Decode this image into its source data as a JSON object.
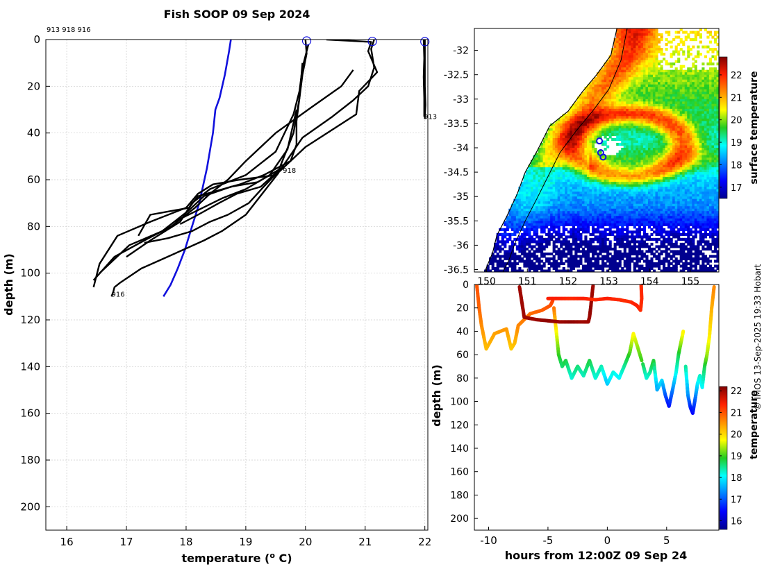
{
  "colors": {
    "profile_line": "#000000",
    "climatology_line": "#1010dd",
    "surface_marker": "#1010dd",
    "grid": "#cccccc",
    "coast": "#000000"
  },
  "credit": "© IMOS 13-Sep-2025 19:33 Hobart",
  "chart_data": [
    {
      "id": "profiles",
      "type": "line",
      "title": "Fish SOOP 09 Sep 2024",
      "subtitle": "913 918 916",
      "xlabel": "temperature (o C)",
      "xlabel_base": "temperature (",
      "xlabel_sup": "o",
      "xlabel_tail": " C)",
      "ylabel": "depth (m)",
      "xlim": [
        15.65,
        22.05
      ],
      "ylim": [
        0,
        210
      ],
      "y_reversed": true,
      "grid": true,
      "xticks": [
        16,
        17,
        18,
        19,
        20,
        21,
        22
      ],
      "yticks": [
        0,
        20,
        40,
        60,
        80,
        100,
        120,
        140,
        160,
        180,
        200
      ],
      "annotations": [
        {
          "text": "913",
          "x": 21.98,
          "y": 34
        },
        {
          "text": "918",
          "x": 19.62,
          "y": 57
        },
        {
          "text": "916",
          "x": 16.75,
          "y": 110
        }
      ],
      "surface_markers": [
        {
          "x": 20.02,
          "y": 0.6
        },
        {
          "x": 21.12,
          "y": 0.8
        },
        {
          "x": 22.0,
          "y": 0.9
        }
      ],
      "series": [
        {
          "name": "climatology",
          "kind": "climatology",
          "x": [
            18.75,
            18.72,
            18.65,
            18.56,
            18.49,
            18.45,
            18.35,
            18.22,
            18.1,
            17.98,
            17.86,
            17.74,
            17.62
          ],
          "y": [
            0,
            5,
            15,
            25,
            30,
            40,
            55,
            70,
            80,
            90,
            98,
            105,
            110
          ]
        },
        {
          "name": "913 a",
          "kind": "profile",
          "x": [
            22.0,
            22.0,
            22.0,
            22.01,
            22.0,
            22.0
          ],
          "y": [
            0,
            10,
            20,
            28,
            33,
            34
          ]
        },
        {
          "name": "913 b",
          "kind": "profile",
          "x": [
            21.98,
            21.99,
            21.98,
            21.99,
            21.99
          ],
          "y": [
            0,
            8,
            16,
            25,
            33
          ]
        },
        {
          "name": "918 a",
          "kind": "profile",
          "x": [
            20.35,
            21.1,
            21.05,
            21.2,
            20.9,
            20.85,
            20.0,
            19.5,
            18.9,
            18.45,
            18.2,
            18.0,
            17.4,
            16.85,
            16.55,
            16.45
          ],
          "y": [
            0,
            1,
            5,
            14,
            22,
            32,
            46,
            58,
            60,
            62,
            66,
            72,
            78,
            84,
            96,
            106
          ]
        },
        {
          "name": "918 b",
          "kind": "profile",
          "x": [
            21.15,
            21.1,
            21.15,
            21.05,
            20.8,
            20.45,
            19.95,
            19.6,
            19.2,
            18.75,
            18.3,
            18.05,
            17.6,
            17.05,
            16.55
          ],
          "y": [
            0,
            4,
            12,
            20,
            26,
            33,
            42,
            55,
            61,
            63,
            67,
            73,
            82,
            88,
            100
          ]
        },
        {
          "name": "918 c",
          "kind": "profile",
          "x": [
            20.8,
            20.6,
            20.1,
            19.5,
            19.0,
            18.7,
            18.4,
            18.15,
            17.75,
            17.3,
            16.8,
            16.45
          ],
          "y": [
            13,
            20,
            29,
            40,
            52,
            60,
            66,
            72,
            80,
            86,
            93,
            103
          ]
        },
        {
          "name": "916 a",
          "kind": "profile",
          "x": [
            20.0,
            20.02,
            19.95,
            19.9,
            19.85,
            19.85,
            19.75,
            19.3,
            18.9,
            18.2,
            18.05,
            17.4,
            17.2
          ],
          "y": [
            0,
            6,
            15,
            25,
            35,
            45,
            52,
            58,
            62,
            67,
            72,
            75,
            84
          ]
        },
        {
          "name": "916 b",
          "kind": "profile",
          "x": [
            20.05,
            19.95,
            19.9,
            19.8,
            19.5,
            19.0,
            18.4,
            18.1,
            17.9,
            17.4,
            17.0
          ],
          "y": [
            2,
            12,
            22,
            32,
            48,
            58,
            64,
            70,
            78,
            86,
            93
          ]
        },
        {
          "name": "916 c",
          "kind": "profile",
          "x": [
            19.95,
            19.9,
            19.8,
            19.55,
            19.25,
            18.85,
            18.55,
            18.2,
            17.9
          ],
          "y": [
            10,
            25,
            40,
            56,
            63,
            66,
            70,
            75,
            79
          ]
        },
        {
          "name": "916 d",
          "kind": "profile",
          "x": [
            19.85,
            19.7,
            19.4,
            19.0,
            18.6,
            18.2,
            17.8
          ],
          "y": [
            30,
            47,
            58,
            64,
            68,
            73,
            78
          ]
        },
        {
          "name": "916 e",
          "kind": "profile",
          "x": [
            19.6,
            19.3,
            19.05,
            18.7,
            18.4,
            18.1,
            17.7,
            17.3
          ],
          "y": [
            55,
            63,
            70,
            75,
            78,
            82,
            85,
            87
          ]
        },
        {
          "name": "916 f",
          "kind": "profile",
          "x": [
            19.55,
            19.0,
            18.6,
            18.3,
            17.95,
            17.6,
            17.25,
            16.9,
            16.8,
            16.78,
            16.75
          ],
          "y": [
            57,
            75,
            82,
            86,
            90,
            94,
            98,
            104,
            106,
            108,
            110
          ]
        }
      ]
    },
    {
      "id": "sst_map",
      "type": "heatmap",
      "colorbar_label": "surface temperature",
      "clim": [
        16.5,
        22.8
      ],
      "colorbar_ticks": [
        17,
        18,
        19,
        20,
        21,
        22
      ],
      "xlim": [
        149.7,
        155.7
      ],
      "ylim": [
        -36.55,
        -31.55
      ],
      "xticks": [
        150,
        151,
        152,
        153,
        154,
        155
      ],
      "yticks": [
        -32,
        -32.5,
        -33,
        -33.5,
        -34,
        -34.5,
        -35,
        -35.5,
        -36,
        -36.5
      ],
      "coastline": [
        [
          153.2,
          -31.55
        ],
        [
          153.05,
          -32.1
        ],
        [
          152.7,
          -32.5
        ],
        [
          152.35,
          -32.85
        ],
        [
          152.0,
          -33.25
        ],
        [
          151.55,
          -33.55
        ],
        [
          151.25,
          -34.05
        ],
        [
          150.95,
          -34.5
        ],
        [
          150.75,
          -34.95
        ],
        [
          150.5,
          -35.4
        ],
        [
          150.25,
          -35.8
        ],
        [
          150.15,
          -36.15
        ],
        [
          149.95,
          -36.55
        ]
      ],
      "shelf_contour": [
        [
          153.45,
          -31.55
        ],
        [
          153.3,
          -32.2
        ],
        [
          153.0,
          -32.8
        ],
        [
          152.6,
          -33.25
        ],
        [
          152.2,
          -33.65
        ],
        [
          151.8,
          -34.1
        ],
        [
          151.5,
          -34.6
        ],
        [
          151.2,
          -35.1
        ],
        [
          150.95,
          -35.5
        ],
        [
          150.7,
          -35.95
        ],
        [
          150.55,
          -36.3
        ],
        [
          150.4,
          -36.55
        ]
      ],
      "stations": [
        {
          "lon": 152.77,
          "lat": -33.86
        },
        {
          "lon": 152.8,
          "lat": -34.1
        },
        {
          "lon": 152.86,
          "lat": -34.19
        }
      ]
    },
    {
      "id": "depth_time",
      "type": "scatter",
      "xlabel": "hours from 12:00Z 09 Sep 24",
      "ylabel": "depth (m)",
      "colorbar_label": "temperature",
      "xlim": [
        -11.2,
        9.4
      ],
      "ylim": [
        0,
        210
      ],
      "y_reversed": true,
      "clim": [
        15.6,
        22.2
      ],
      "xticks": [
        -10,
        -5,
        0,
        5
      ],
      "yticks": [
        0,
        20,
        40,
        60,
        80,
        100,
        120,
        140,
        160,
        180,
        200
      ],
      "colorbar_ticks": [
        16,
        17,
        18,
        19,
        20,
        21,
        22
      ],
      "tracks": [
        {
          "t": [
            -11,
            -10.8,
            -10.6,
            -10.2,
            -9.5,
            -8.5,
            -8.1,
            -7.8,
            -7.5,
            -6.5,
            -5.5,
            -4.8,
            -4.6
          ],
          "depth": [
            0,
            20,
            35,
            55,
            42,
            38,
            55,
            50,
            35,
            25,
            22,
            18,
            14
          ],
          "temp": [
            21.0,
            20.9,
            20.6,
            20.2,
            20.4,
            20.5,
            20.1,
            20.2,
            20.6,
            20.8,
            20.9,
            21.0,
            21.1
          ]
        },
        {
          "t": [
            -4.5,
            -4.3,
            -4.1,
            -3.8,
            -3.5,
            -3.0,
            -2.5,
            -2.0,
            -1.5,
            -1.0,
            -0.5,
            0.0,
            0.5,
            1.0,
            1.5,
            1.9,
            2.2,
            2.6,
            2.9
          ],
          "depth": [
            20,
            40,
            60,
            70,
            65,
            80,
            70,
            78,
            65,
            80,
            70,
            85,
            75,
            80,
            68,
            58,
            42,
            55,
            65
          ],
          "temp": [
            20.8,
            19.8,
            19.0,
            18.6,
            18.8,
            18.2,
            18.6,
            18.3,
            18.8,
            18.2,
            18.4,
            17.7,
            18.2,
            18.0,
            18.5,
            19.0,
            19.8,
            19.3,
            19.0
          ]
        },
        {
          "t": [
            3.0,
            3.3,
            3.6,
            3.9,
            4.2,
            4.6,
            4.9,
            5.2,
            5.5,
            5.8,
            6.0,
            6.2,
            6.4
          ],
          "depth": [
            68,
            80,
            75,
            65,
            90,
            82,
            95,
            104,
            90,
            75,
            60,
            50,
            40
          ],
          "temp": [
            18.8,
            18.2,
            18.4,
            18.9,
            17.5,
            17.9,
            17.0,
            16.5,
            17.2,
            18.1,
            18.7,
            19.3,
            19.8
          ]
        },
        {
          "t": [
            6.6,
            6.8,
            7.0,
            7.2,
            7.4,
            7.6,
            7.8,
            8.0,
            8.2,
            8.4,
            8.6,
            8.8,
            9.0
          ],
          "depth": [
            70,
            95,
            105,
            110,
            98,
            85,
            78,
            88,
            70,
            60,
            45,
            20,
            2
          ],
          "temp": [
            18.5,
            17.4,
            16.7,
            16.4,
            17.0,
            17.9,
            18.3,
            18.0,
            18.7,
            19.3,
            19.8,
            20.3,
            20.6
          ]
        },
        {
          "t": [
            -7.4,
            -7.2,
            -7.0,
            -6.0,
            -5.0,
            -4.0,
            -3.0,
            -2.0,
            -1.6,
            -1.5,
            -1.4,
            -1.3,
            -1.2
          ],
          "depth": [
            2,
            15,
            28,
            30,
            31,
            32,
            32,
            32,
            32,
            28,
            20,
            10,
            1
          ],
          "temp": [
            22.0,
            22.0,
            22.0,
            22.0,
            22.1,
            22.0,
            22.1,
            22.0,
            22.0,
            22.0,
            22.1,
            22.0,
            22.0
          ]
        },
        {
          "t": [
            -5.0,
            -4.0,
            -3.0,
            -2.0,
            -1.0,
            0.0,
            1.0,
            2.0,
            2.5,
            2.8,
            2.9,
            2.85
          ],
          "depth": [
            12,
            12,
            12,
            12,
            13,
            12,
            13,
            15,
            18,
            22,
            12,
            0
          ],
          "temp": [
            21.4,
            21.4,
            21.3,
            21.4,
            21.3,
            21.4,
            21.3,
            21.3,
            21.4,
            21.3,
            21.3,
            21.3
          ]
        }
      ]
    }
  ]
}
